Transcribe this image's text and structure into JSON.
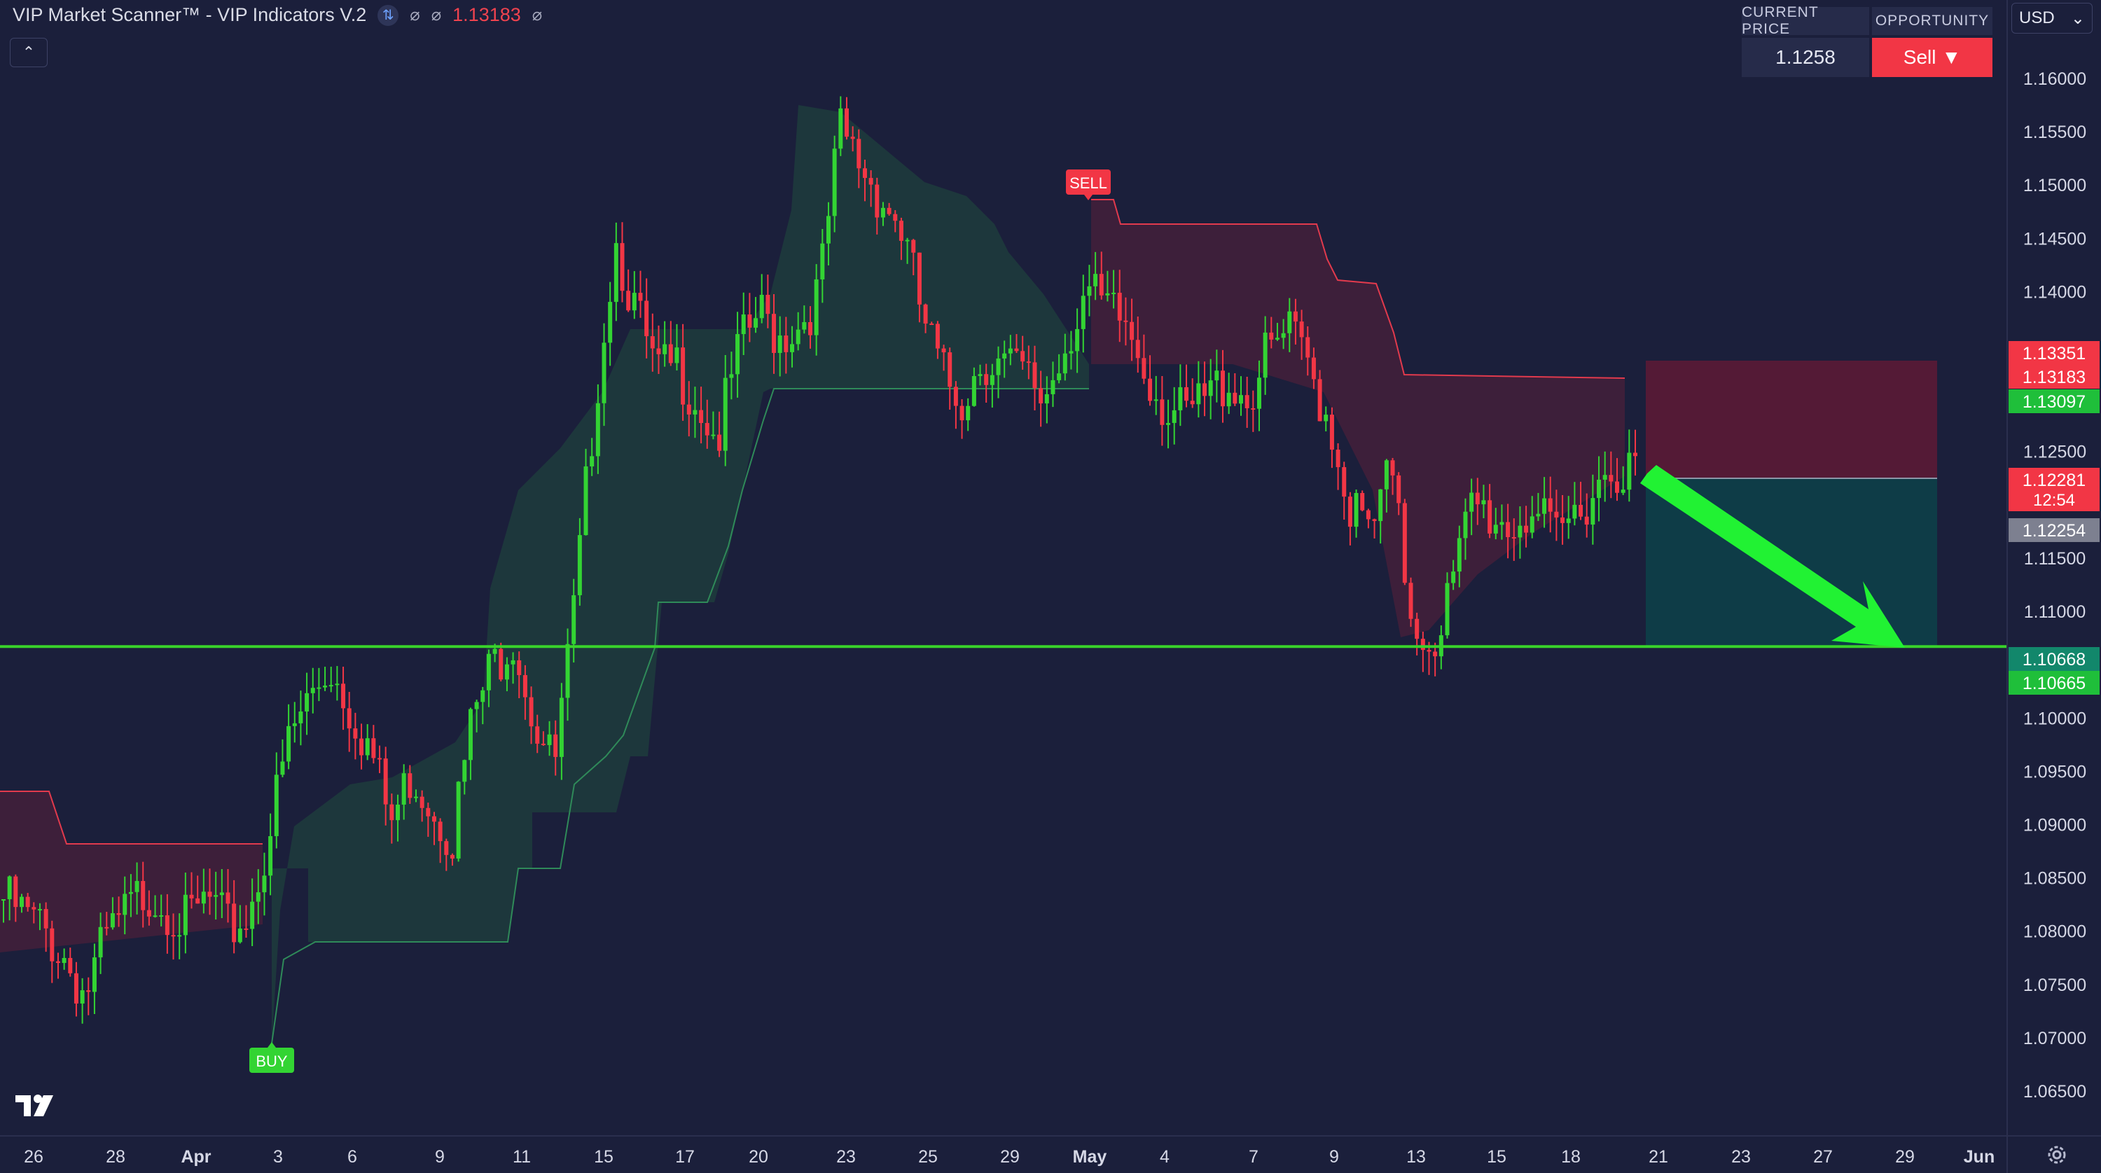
{
  "indicator": {
    "title": "VIP Market Scanner™ - VIP Indicators V.2",
    "value": "1.13183",
    "badge_icon": "arrows-icon",
    "hidden_glyph": "⌀"
  },
  "collapse_glyph": "⌃",
  "info_panel": {
    "current_price_label": "CURRENT PRICE",
    "opportunity_label": "OPPORTUNITY",
    "current_price": "1.1258",
    "opportunity": "Sell",
    "opportunity_arrow": "▼"
  },
  "currency": "USD",
  "currency_chevron": "⌄",
  "signals": {
    "buy": "BUY",
    "sell": "SELL"
  },
  "colors": {
    "background": "#1b1f3b",
    "up": "#33d433",
    "down": "#f23645",
    "sell_zone": "#5b1a36",
    "target_zone": "#0e3e48",
    "horizontal_line": "#39d32b",
    "arrow": "#21f233"
  },
  "chart_data": {
    "type": "candlestick",
    "y_min": 1.0625,
    "y_max": 1.1625,
    "y_ticks": [
      "1.16000",
      "1.15500",
      "1.15000",
      "1.14500",
      "1.14000",
      "1.12500",
      "1.11500",
      "1.11000",
      "1.10000",
      "1.09500",
      "1.09000",
      "1.08500",
      "1.08000",
      "1.07500",
      "1.07000",
      "1.06500"
    ],
    "x_ticks": [
      "26",
      "28",
      "Apr",
      "3",
      "6",
      "9",
      "11",
      "15",
      "17",
      "20",
      "23",
      "25",
      "29",
      "May",
      "4",
      "7",
      "9",
      "13",
      "15",
      "18",
      "21",
      "23",
      "27",
      "29",
      "Jun"
    ],
    "horizontal_line": 1.1067,
    "price_tags": [
      {
        "text": "1.13351",
        "kind": "sell",
        "price": 1.13351
      },
      {
        "text": "1.13183",
        "kind": "sell",
        "price": 1.13183
      },
      {
        "text": "1.13097",
        "kind": "buy",
        "price": 1.13097
      },
      {
        "text": "1.12281",
        "kind": "sell",
        "price": 1.12281,
        "extra": "12:54"
      },
      {
        "text": "1.12254",
        "kind": "neutral",
        "price": 1.12254
      },
      {
        "text": "1.10668",
        "kind": "teal",
        "price": 1.10668
      },
      {
        "text": "1.10665",
        "kind": "buy",
        "price": 1.10665
      }
    ],
    "candle_path": [
      1.083,
      1.0815,
      1.08,
      1.0775,
      1.074,
      1.079,
      1.0815,
      1.084,
      1.0825,
      1.0805,
      1.083,
      1.08,
      1.0815,
      1.089,
      1.098,
      1.102,
      1.105,
      1.101,
      1.097,
      1.09,
      1.095,
      1.092,
      1.089,
      1.1,
      1.105,
      1.108,
      1.1,
      1.095,
      1.11,
      1.13,
      1.145,
      1.138,
      1.132,
      1.133,
      1.13,
      1.126,
      1.134,
      1.138,
      1.136,
      1.137,
      1.14,
      1.155,
      1.152,
      1.149,
      1.146,
      1.138,
      1.132,
      1.13,
      1.134,
      1.133,
      1.132,
      1.13,
      1.135,
      1.14,
      1.138,
      1.137,
      1.133,
      1.129,
      1.128,
      1.13,
      1.132,
      1.13,
      1.134,
      1.136,
      1.133,
      1.128,
      1.12,
      1.117,
      1.123,
      1.11,
      1.107,
      1.112,
      1.12,
      1.119,
      1.118,
      1.12,
      1.116,
      1.119,
      1.122,
      1.124,
      1.1228
    ]
  }
}
